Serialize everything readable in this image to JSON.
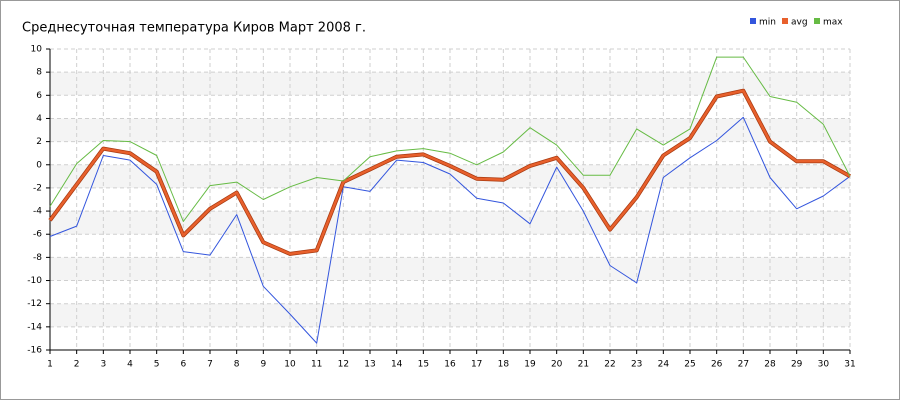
{
  "chart_data": {
    "type": "line",
    "title": "Среднесуточная температура Киров  Март 2008 г.",
    "x": [
      1,
      2,
      3,
      4,
      5,
      6,
      7,
      8,
      9,
      10,
      11,
      12,
      13,
      14,
      15,
      16,
      17,
      18,
      19,
      20,
      21,
      22,
      23,
      24,
      25,
      26,
      27,
      28,
      29,
      30,
      31
    ],
    "xlim": [
      1,
      31
    ],
    "xticks": [
      1,
      2,
      3,
      4,
      5,
      6,
      7,
      8,
      9,
      10,
      11,
      12,
      13,
      14,
      15,
      16,
      17,
      18,
      19,
      20,
      21,
      22,
      23,
      24,
      25,
      26,
      27,
      28,
      29,
      30,
      31
    ],
    "ylim": [
      -16,
      10
    ],
    "yticks": [
      -16,
      -14,
      -12,
      -10,
      -8,
      -6,
      -4,
      -2,
      0,
      2,
      4,
      6,
      8,
      10
    ],
    "grid": true,
    "legend": "top-right",
    "series": [
      {
        "name": "min",
        "color": "#3355dd",
        "values": [
          -6.2,
          -5.3,
          0.8,
          0.4,
          -1.7,
          -7.5,
          -7.8,
          -4.3,
          -10.5,
          -12.9,
          -15.4,
          -1.9,
          -2.3,
          0.4,
          0.2,
          -0.8,
          -2.9,
          -3.3,
          -5.1,
          -0.2,
          -4.0,
          -8.7,
          -10.2,
          -1.1,
          0.6,
          2.1,
          4.1,
          -1.1,
          -3.8,
          -2.7,
          -1.0
        ]
      },
      {
        "name": "avg",
        "color": "#e8602c",
        "values": [
          -4.8,
          -1.7,
          1.4,
          1.0,
          -0.6,
          -6.1,
          -3.8,
          -2.4,
          -6.7,
          -7.7,
          -7.4,
          -1.5,
          -0.4,
          0.7,
          0.9,
          -0.1,
          -1.2,
          -1.3,
          -0.1,
          0.6,
          -2.0,
          -5.6,
          -2.8,
          0.8,
          2.3,
          5.9,
          6.4,
          2.0,
          0.3,
          0.3,
          -1.0
        ]
      },
      {
        "name": "max",
        "color": "#66bb44",
        "values": [
          -3.6,
          0.1,
          2.1,
          2.0,
          0.8,
          -4.9,
          -1.8,
          -1.5,
          -3.0,
          -1.9,
          -1.1,
          -1.4,
          0.7,
          1.2,
          1.4,
          1.0,
          0.0,
          1.1,
          3.2,
          1.7,
          -0.9,
          -0.9,
          3.1,
          1.7,
          3.1,
          9.3,
          9.3,
          5.9,
          5.4,
          3.5,
          -1.0
        ]
      }
    ]
  }
}
